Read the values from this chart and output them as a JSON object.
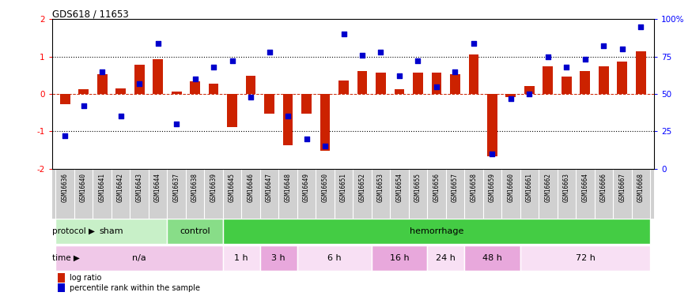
{
  "title": "GDS618 / 11653",
  "samples": [
    "GSM16636",
    "GSM16640",
    "GSM16641",
    "GSM16642",
    "GSM16643",
    "GSM16644",
    "GSM16637",
    "GSM16638",
    "GSM16639",
    "GSM16645",
    "GSM16646",
    "GSM16647",
    "GSM16648",
    "GSM16649",
    "GSM16650",
    "GSM16651",
    "GSM16652",
    "GSM16653",
    "GSM16654",
    "GSM16655",
    "GSM16656",
    "GSM16657",
    "GSM16658",
    "GSM16659",
    "GSM16660",
    "GSM16661",
    "GSM16662",
    "GSM16663",
    "GSM16664",
    "GSM16666",
    "GSM16667",
    "GSM16668"
  ],
  "log_ratio": [
    -0.28,
    0.12,
    0.52,
    0.15,
    0.78,
    0.93,
    0.06,
    0.33,
    0.27,
    -0.88,
    0.48,
    -0.52,
    -1.38,
    -0.52,
    -1.52,
    0.36,
    0.62,
    0.57,
    0.12,
    0.57,
    0.57,
    0.52,
    1.05,
    -1.68,
    -0.08,
    0.22,
    0.73,
    0.46,
    0.62,
    0.73,
    0.87,
    1.15
  ],
  "percentile": [
    22,
    42,
    65,
    35,
    57,
    84,
    30,
    60,
    68,
    72,
    48,
    78,
    35,
    20,
    15,
    90,
    76,
    78,
    62,
    72,
    55,
    65,
    84,
    10,
    47,
    50,
    75,
    68,
    73,
    82,
    80,
    95
  ],
  "protocol_groups": [
    {
      "label": "sham",
      "start": 0,
      "end": 6,
      "color": "#c8f0c8"
    },
    {
      "label": "control",
      "start": 6,
      "end": 9,
      "color": "#88dd88"
    },
    {
      "label": "hemorrhage",
      "start": 9,
      "end": 32,
      "color": "#44cc44"
    }
  ],
  "time_groups": [
    {
      "label": "n/a",
      "start": 0,
      "end": 9,
      "color": "#f0c8e8"
    },
    {
      "label": "1 h",
      "start": 9,
      "end": 11,
      "color": "#f8e0f4"
    },
    {
      "label": "3 h",
      "start": 11,
      "end": 13,
      "color": "#e8a8dc"
    },
    {
      "label": "6 h",
      "start": 13,
      "end": 17,
      "color": "#f8e0f4"
    },
    {
      "label": "16 h",
      "start": 17,
      "end": 20,
      "color": "#e8a8dc"
    },
    {
      "label": "24 h",
      "start": 20,
      "end": 22,
      "color": "#f8e0f4"
    },
    {
      "label": "48 h",
      "start": 22,
      "end": 25,
      "color": "#e8a8dc"
    },
    {
      "label": "72 h",
      "start": 25,
      "end": 32,
      "color": "#f8e0f4"
    }
  ],
  "bar_color": "#cc2200",
  "dot_color": "#0000cc",
  "ylim": [
    -2,
    2
  ],
  "y2lim": [
    0,
    100
  ],
  "yticks_left": [
    -2,
    -1,
    0,
    1,
    2
  ],
  "yticks_right": [
    0,
    25,
    50,
    75,
    100
  ],
  "xlabel_bg": "#d0d0d0",
  "xtick_fontsize": 5.5,
  "row_label_fontsize": 7.5,
  "row_text_fontsize": 8
}
